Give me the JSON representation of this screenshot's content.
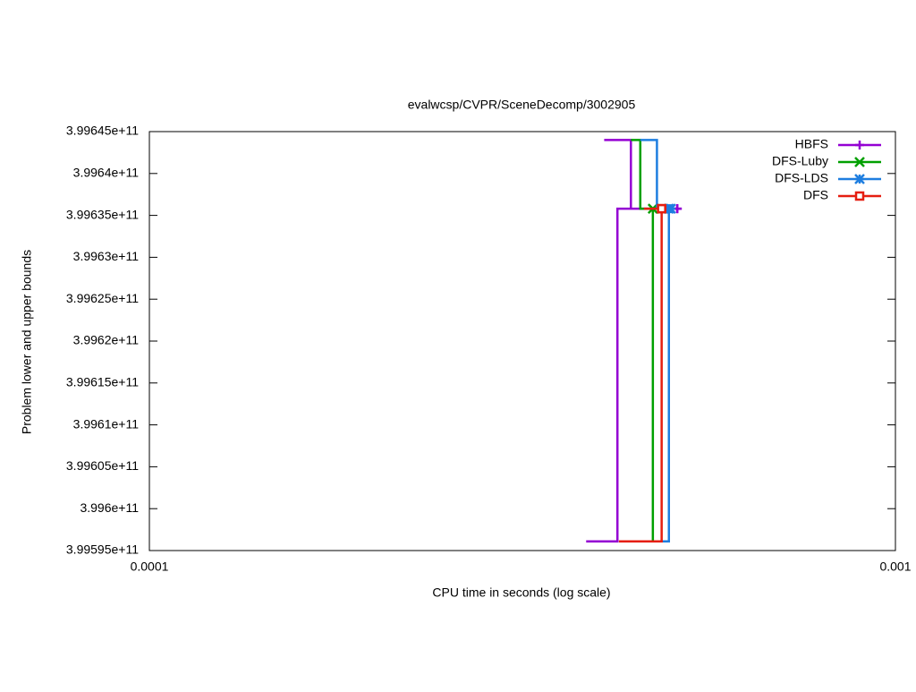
{
  "chart_data": {
    "type": "line",
    "title": "evalwcsp/CVPR/SceneDecomp/3002905",
    "x_label": "CPU time in seconds (log scale)",
    "y_label": "Problem lower and upper bounds",
    "xscale": "log",
    "legend": "top-right",
    "xlim": [
      0.0001,
      0.001
    ],
    "xticks": [
      0.0001,
      0.001
    ],
    "ylim": [
      399595000000,
      399645000000
    ],
    "yticks": [
      {
        "value": 399595000000,
        "label": "3.99595e+11"
      },
      {
        "value": 399600000000,
        "label": "3.996e+11"
      },
      {
        "value": 399605000000,
        "label": "3.99605e+11"
      },
      {
        "value": 399610000000,
        "label": "3.9961e+11"
      },
      {
        "value": 399615000000,
        "label": "3.99615e+11"
      },
      {
        "value": 399620000000,
        "label": "3.9962e+11"
      },
      {
        "value": 399625000000,
        "label": "3.99625e+11"
      },
      {
        "value": 399630000000,
        "label": "3.9963e+11"
      },
      {
        "value": 399635000000,
        "label": "3.99635e+11"
      },
      {
        "value": 399640000000,
        "label": "3.9964e+11"
      },
      {
        "value": 399645000000,
        "label": "3.99645e+11"
      }
    ],
    "series": [
      {
        "name": "HBFS",
        "color": "#9400d3",
        "marker": "plus",
        "x": [
          0.000407,
          0.000442,
          0.000442,
          0.00051,
          null,
          0.000385,
          0.000424,
          0.000424,
          0.00051
        ],
        "values": [
          399644000000,
          399644000000,
          399635800000,
          399635800000,
          null,
          399596100000,
          399596100000,
          399635800000,
          399635800000
        ]
      },
      {
        "name": "DFS-Luby",
        "color": "#00a000",
        "marker": "x",
        "x": [
          0.000442,
          0.000455,
          0.000455,
          0.000486,
          null,
          0.000426,
          0.000473,
          0.000473
        ],
        "values": [
          399644000000,
          399644000000,
          399635800000,
          399635800000,
          null,
          399596100000,
          399596100000,
          399635800000
        ]
      },
      {
        "name": "DFS-LDS",
        "color": "#1e7ee0",
        "marker": "star",
        "x": [
          0.000455,
          0.000479,
          0.000479,
          0.0005,
          null,
          0.00043,
          0.000497,
          0.000497
        ],
        "values": [
          399644000000,
          399644000000,
          399635800000,
          399635800000,
          null,
          399596100000,
          399596100000,
          399635800000
        ]
      },
      {
        "name": "DFS",
        "color": "#e51e10",
        "marker": "square",
        "x": [
          0.00046,
          0.000486,
          null,
          0.000426,
          0.000486,
          0.000486
        ],
        "values": [
          399635800000,
          399635800000,
          null,
          399596100000,
          399596100000,
          399635800000
        ]
      }
    ]
  }
}
